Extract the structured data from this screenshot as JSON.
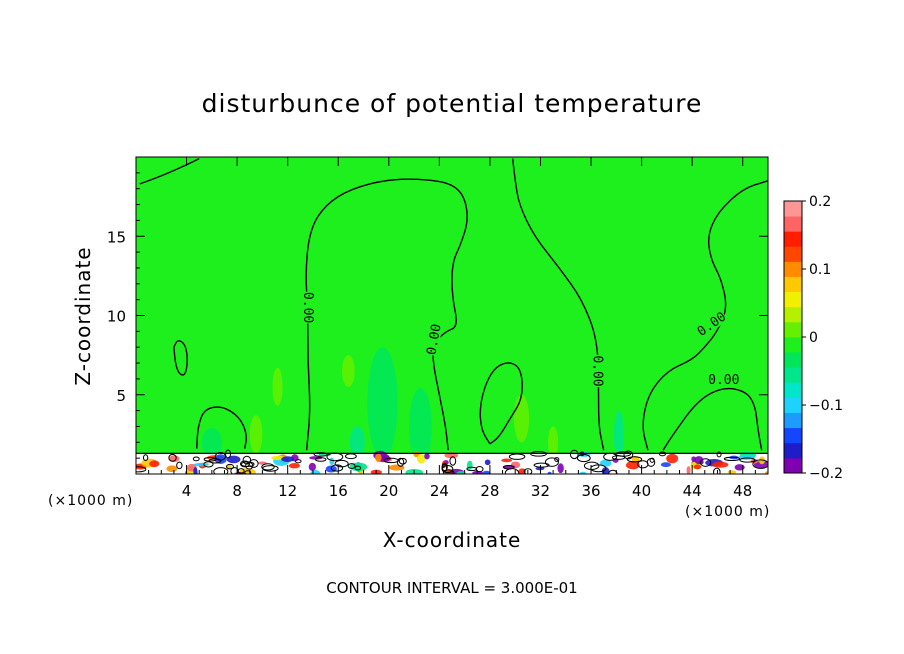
{
  "chart_data": {
    "type": "heatmap",
    "title": "disturbunce of potential temperature",
    "xlabel": "X-coordinate",
    "ylabel": "Z-coordinate",
    "x_unit": "(×1000 m)",
    "x_unit_right": "(×1000 m)",
    "footer": "CONTOUR INTERVAL = 3.000E-01",
    "xlim": [
      0,
      50
    ],
    "ylim": [
      0,
      20
    ],
    "x_ticks": [
      "4",
      "8",
      "12",
      "16",
      "20",
      "24",
      "28",
      "32",
      "36",
      "40",
      "44",
      "48"
    ],
    "x_tick_values": [
      4,
      8,
      12,
      16,
      20,
      24,
      28,
      32,
      36,
      40,
      44,
      48
    ],
    "y_ticks": [
      "5",
      "10",
      "15"
    ],
    "y_tick_values": [
      5,
      10,
      15
    ],
    "colorbar": {
      "min": -0.2,
      "max": 0.2,
      "labels": [
        "0.2",
        "0.1",
        "0",
        "−0.1",
        "−0.2"
      ],
      "label_values": [
        0.2,
        0.1,
        0,
        -0.1,
        -0.2
      ],
      "colors": [
        "#7f00b2",
        "#1e1ec8",
        "#1446ff",
        "#1c9cff",
        "#1ed2ff",
        "#00e6c8",
        "#00e68c",
        "#00e65a",
        "#1ef01e",
        "#64f000",
        "#b4f000",
        "#f0f000",
        "#ffc800",
        "#ff8c00",
        "#ff4600",
        "#ff1e00",
        "#ff6464",
        "#ff9696"
      ]
    },
    "background_value": 0.0,
    "contour_labels": [
      "0.00",
      "0.00",
      "0.00",
      "0.00",
      "0.00"
    ],
    "contours": [
      {
        "value": 0.0,
        "points": [
          [
            0.3,
            18.3
          ],
          [
            2,
            18.8
          ],
          [
            4,
            19.5
          ],
          [
            5,
            19.9
          ]
        ]
      },
      {
        "value": 0.0,
        "points": [
          [
            13.5,
            1.5
          ],
          [
            13.8,
            4
          ],
          [
            13.6,
            7
          ],
          [
            13.6,
            10
          ],
          [
            13.4,
            13
          ],
          [
            13.8,
            15.5
          ],
          [
            15,
            17
          ],
          [
            17,
            18
          ],
          [
            20,
            18.6
          ],
          [
            23,
            18.6
          ],
          [
            25,
            18.3
          ],
          [
            26,
            17.5
          ],
          [
            26.3,
            16
          ],
          [
            25.7,
            14.5
          ],
          [
            25,
            13.3
          ],
          [
            25,
            11.2
          ],
          [
            25.5,
            9.3
          ],
          [
            24.5,
            9
          ],
          [
            23.5,
            8.2
          ],
          [
            23.5,
            7
          ],
          [
            24,
            5
          ],
          [
            24.5,
            3
          ],
          [
            24.7,
            1.5
          ]
        ]
      },
      {
        "value": 0.0,
        "points": [
          [
            29.8,
            19.9
          ],
          [
            30,
            18.5
          ],
          [
            30.3,
            17
          ],
          [
            31.5,
            15
          ],
          [
            33.5,
            13
          ],
          [
            35.3,
            11
          ],
          [
            36.5,
            8.5
          ],
          [
            36.6,
            5.5
          ],
          [
            36.6,
            3
          ],
          [
            37,
            1.5
          ]
        ]
      },
      {
        "value": 0.0,
        "points": [
          [
            40.5,
            1.5
          ],
          [
            40,
            3
          ],
          [
            40.5,
            5
          ],
          [
            42,
            6.5
          ],
          [
            44,
            7.2
          ],
          [
            45,
            8
          ],
          [
            46,
            9
          ],
          [
            46.8,
            10.5
          ],
          [
            46.3,
            12.3
          ],
          [
            45.5,
            13.5
          ],
          [
            45.2,
            15
          ],
          [
            46,
            16.5
          ],
          [
            48,
            18
          ],
          [
            50,
            18.5
          ]
        ]
      },
      {
        "value": 0.0,
        "points": [
          [
            28,
            1.9
          ],
          [
            27.3,
            2.8
          ],
          [
            27.2,
            4.3
          ],
          [
            27.7,
            5.8
          ],
          [
            28.5,
            6.8
          ],
          [
            29.6,
            7.1
          ],
          [
            30.5,
            6.6
          ],
          [
            30.6,
            4.8
          ],
          [
            29.6,
            3.5
          ],
          [
            28.7,
            2.3
          ],
          [
            28,
            1.9
          ]
        ]
      },
      {
        "value": 0.0,
        "points": [
          [
            3,
            8
          ],
          [
            3.3,
            8.5
          ],
          [
            3.9,
            8.2
          ],
          [
            4.1,
            7.2
          ],
          [
            3.9,
            6.2
          ],
          [
            3.4,
            6.3
          ],
          [
            3.1,
            7
          ],
          [
            3,
            8
          ]
        ]
      },
      {
        "value": 0.0,
        "points": [
          [
            4.8,
            1.6
          ],
          [
            4.9,
            3
          ],
          [
            5.4,
            4.1
          ],
          [
            6.8,
            4.3
          ],
          [
            8.2,
            3.6
          ],
          [
            8.8,
            2.5
          ],
          [
            8.6,
            1.6
          ]
        ]
      },
      {
        "value": 0.0,
        "points": [
          [
            41.7,
            1.5
          ],
          [
            42.5,
            2.5
          ],
          [
            44.5,
            4.7
          ],
          [
            46.5,
            5.5
          ],
          [
            48.3,
            5.2
          ],
          [
            49,
            4.3
          ],
          [
            49.2,
            2.8
          ],
          [
            49.5,
            1.5
          ]
        ]
      }
    ],
    "anomalies": [
      {
        "cx": 19.5,
        "cy": 4.5,
        "rx": 1.2,
        "ry": 3.5,
        "value": -0.03
      },
      {
        "cx": 22.5,
        "cy": 3,
        "rx": 0.9,
        "ry": 2.4,
        "value": -0.03
      },
      {
        "cx": 11.2,
        "cy": 5.5,
        "rx": 0.4,
        "ry": 1.2,
        "value": 0.02
      },
      {
        "cx": 16.8,
        "cy": 6.5,
        "rx": 0.5,
        "ry": 1,
        "value": 0.02
      },
      {
        "cx": 30.5,
        "cy": 3.5,
        "rx": 0.6,
        "ry": 1.5,
        "value": 0.02
      },
      {
        "cx": 33,
        "cy": 2,
        "rx": 0.4,
        "ry": 1,
        "value": 0.02
      },
      {
        "cx": 9.5,
        "cy": 2.5,
        "rx": 0.5,
        "ry": 1.2,
        "value": 0.02
      },
      {
        "cx": 38.2,
        "cy": 2.5,
        "rx": 0.4,
        "ry": 1.5,
        "value": -0.06
      },
      {
        "cx": 6,
        "cy": 2,
        "rx": 0.8,
        "ry": 0.9,
        "value": -0.04
      },
      {
        "cx": 17.5,
        "cy": 2,
        "rx": 0.6,
        "ry": 1,
        "value": -0.05
      }
    ],
    "surface_layer": {
      "z_top": 1.3,
      "noisy": true
    }
  }
}
